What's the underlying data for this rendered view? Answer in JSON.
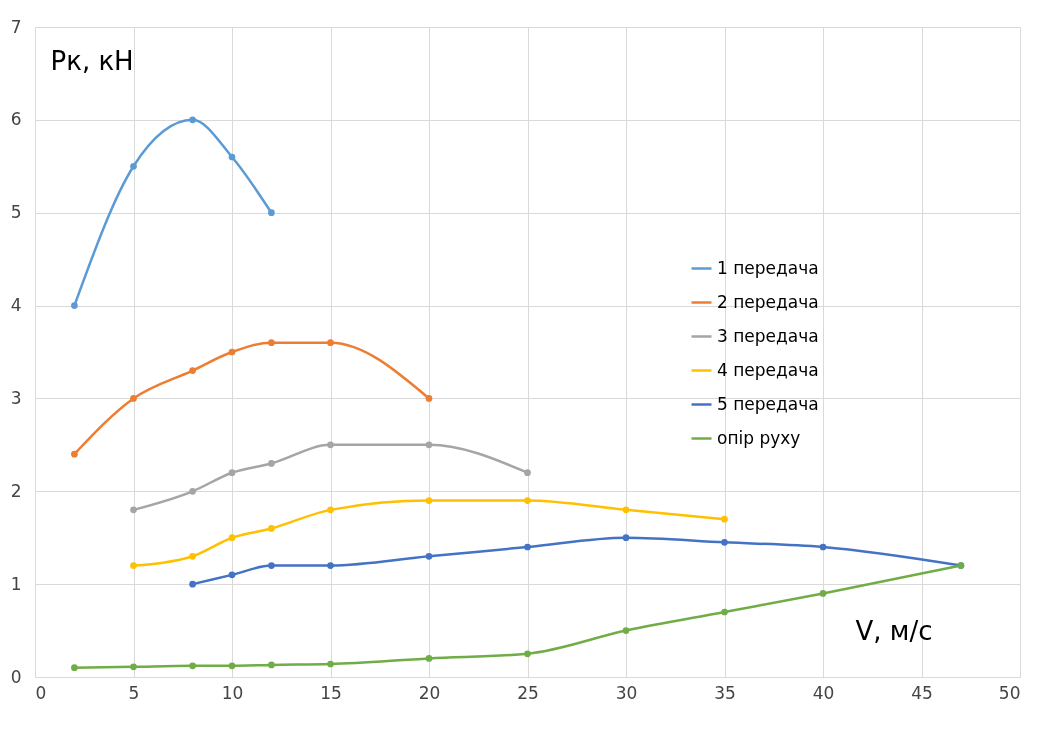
{
  "chart_data": {
    "type": "line",
    "xlabel": "V, м/с",
    "ylabel": "Рк, кН",
    "xlim": [
      0,
      50
    ],
    "xticks": [
      0,
      5,
      10,
      15,
      20,
      25,
      30,
      35,
      40,
      45,
      50
    ],
    "ylim": [
      0,
      7
    ],
    "yticks": [
      0,
      1,
      2,
      3,
      4,
      5,
      6,
      7
    ],
    "grid": true,
    "legend": "right",
    "marker": "circle",
    "line_style": "solid",
    "series": [
      {
        "name": "1 передача",
        "color": "#5b9bd5",
        "x": [
          2,
          5,
          8,
          10,
          12
        ],
        "values": [
          4,
          5.5,
          6,
          5.6,
          5
        ]
      },
      {
        "name": "2 передача",
        "color": "#ed7d31",
        "x": [
          2,
          5,
          8,
          10,
          12,
          15,
          20
        ],
        "values": [
          2.4,
          3,
          3.3,
          3.5,
          3.6,
          3.6,
          3
        ]
      },
      {
        "name": "3 передача",
        "color": "#a5a5a5",
        "x": [
          5,
          8,
          10,
          12,
          15,
          20,
          25
        ],
        "values": [
          1.8,
          2,
          2.2,
          2.3,
          2.5,
          2.5,
          2.2
        ]
      },
      {
        "name": "4 передача",
        "color": "#ffc000",
        "x": [
          5,
          8,
          10,
          12,
          15,
          20,
          25,
          30,
          35
        ],
        "values": [
          1.2,
          1.3,
          1.5,
          1.6,
          1.8,
          1.9,
          1.9,
          1.8,
          1.7
        ]
      },
      {
        "name": "5 передача",
        "color": "#4472c4",
        "x": [
          8,
          10,
          12,
          15,
          20,
          25,
          30,
          35,
          40,
          47
        ],
        "values": [
          1,
          1.1,
          1.2,
          1.2,
          1.3,
          1.4,
          1.5,
          1.45,
          1.4,
          1.2
        ]
      },
      {
        "name": "опір руху",
        "color": "#70ad47",
        "x": [
          2,
          5,
          8,
          10,
          12,
          15,
          20,
          25,
          30,
          35,
          40,
          47
        ],
        "values": [
          0.1,
          0.11,
          0.12,
          0.12,
          0.13,
          0.14,
          0.2,
          0.25,
          0.5,
          0.7,
          0.9,
          1.2
        ]
      }
    ]
  }
}
